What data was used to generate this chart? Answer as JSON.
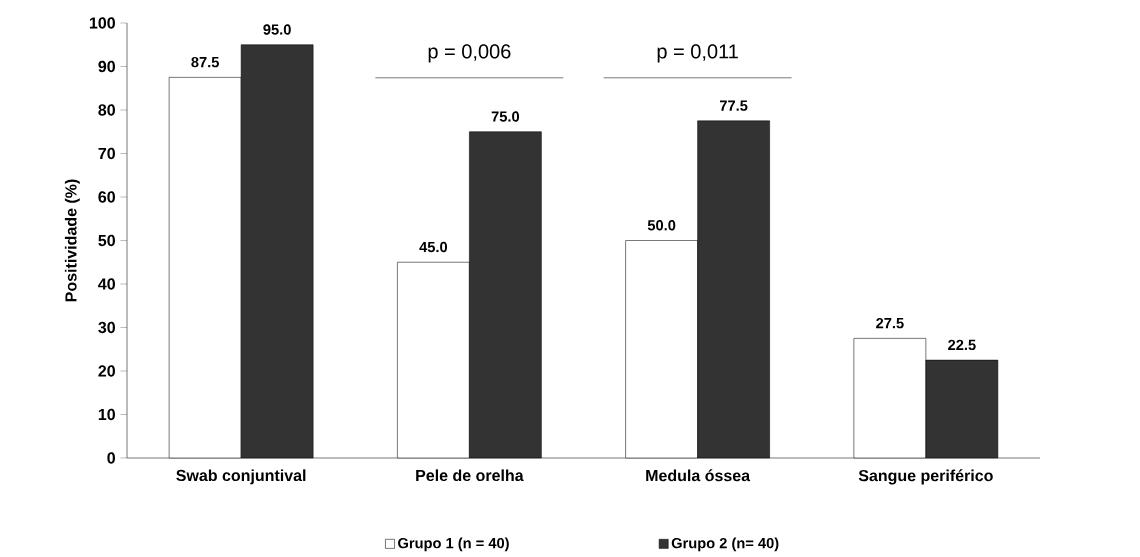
{
  "chart_data": {
    "type": "bar",
    "ylabel": "Positividade (%)",
    "categories": [
      "Swab conjuntival",
      "Pele de orelha",
      "Medula óssea",
      "Sangue periférico"
    ],
    "series": [
      {
        "name": "Grupo 1 (n = 40)",
        "color": "#ffffff",
        "values": [
          87.5,
          45.0,
          50.0,
          27.5
        ],
        "value_labels": [
          "87.5",
          "45.0",
          "50.0",
          "27.5"
        ]
      },
      {
        "name": "Grupo 2 (n= 40)",
        "color": "#333333",
        "values": [
          95.0,
          75.0,
          77.5,
          22.5
        ],
        "value_labels": [
          "95.0",
          "75.0",
          "77.5",
          "22.5"
        ]
      }
    ],
    "ylim": [
      0,
      100
    ],
    "yticks": [
      0,
      10,
      20,
      30,
      40,
      50,
      60,
      70,
      80,
      90,
      100
    ],
    "legend": "bottom",
    "annotations": [
      "p = 0,006",
      "p = 0,011"
    ]
  }
}
